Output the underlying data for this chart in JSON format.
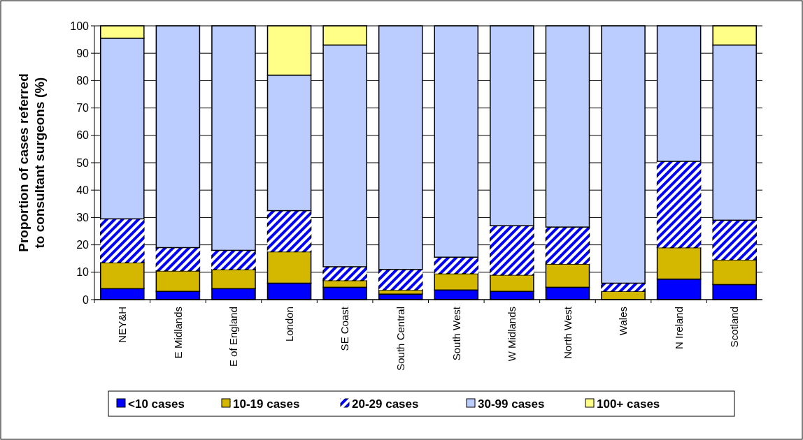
{
  "chart_data": {
    "type": "bar",
    "stacked": true,
    "ylabel": "Proportion of cases referred to consultant surgeons (%)",
    "categories": [
      "NEY&H",
      "E Midlands",
      "E of England",
      "London",
      "SE Coast",
      "South Central",
      "South West",
      "W Midlands",
      "North West",
      "Wales",
      "N Ireland",
      "Scotland"
    ],
    "series": [
      {
        "name": "<10 cases",
        "color": "#0000ff",
        "values": [
          4,
          3,
          4,
          6,
          4.5,
          2,
          3.5,
          3,
          4.5,
          0,
          7.5,
          5.5
        ]
      },
      {
        "name": "10-19 cases",
        "color": "#d4b800",
        "values": [
          9.5,
          7.5,
          7,
          11.5,
          2.5,
          1.5,
          6,
          6,
          8.5,
          3,
          11.5,
          9
        ]
      },
      {
        "name": "20-29 cases",
        "color": "#0000ff",
        "values": [
          16,
          8.5,
          7,
          15,
          5,
          7.5,
          6,
          18,
          13.5,
          3,
          31.5,
          14.5
        ]
      },
      {
        "name": "30-99 cases",
        "color": "#bbccff",
        "values": [
          66,
          81,
          82,
          49.5,
          81,
          89,
          84.5,
          73,
          73.5,
          94,
          49.5,
          64
        ]
      },
      {
        "name": "100+ cases",
        "color": "#ffff88",
        "values": [
          4.5,
          0,
          0,
          18,
          7,
          0,
          0,
          0,
          0,
          0,
          0,
          7
        ]
      }
    ],
    "ylim": [
      0,
      100
    ],
    "yticks": [
      0,
      10,
      20,
      30,
      40,
      50,
      60,
      70,
      80,
      90,
      100
    ],
    "grid": "y",
    "legend": "bottom"
  }
}
